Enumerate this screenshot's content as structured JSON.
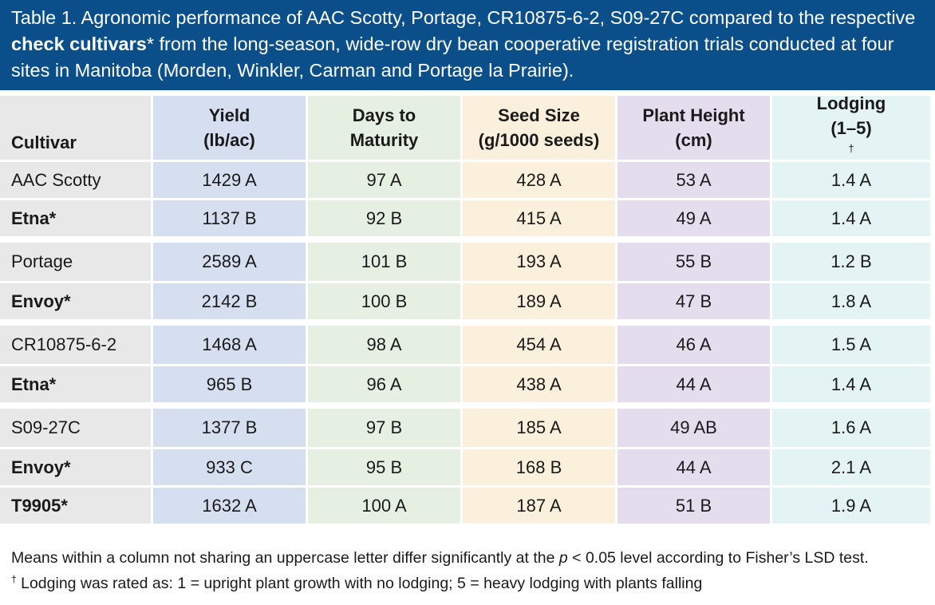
{
  "title": {
    "part1": "Table 1. Agronomic performance of AAC Scotty, Portage, CR10875-6-2, S09-27C compared to the respective ",
    "bold": "check cultivars",
    "part2": "* from the long-season, wide-row dry bean cooperative registration trials conducted at four sites in Manitoba (Morden, Winkler, Carman and Portage la Prairie)."
  },
  "headers": {
    "cultivar": "Cultivar",
    "yield_1": "Yield",
    "yield_2": "(lb/ac)",
    "maturity_1": "Days to",
    "maturity_2": "Maturity",
    "seed_1": "Seed Size",
    "seed_2": "(g/1000 seeds)",
    "height_1": "Plant Height",
    "height_2": "(cm)",
    "lodging_1": "Lodging",
    "lodging_2": "(1–5)",
    "lodging_dagger": "†"
  },
  "groups": [
    {
      "rows": [
        {
          "cultivar": "AAC Scotty",
          "check": false,
          "yield": "1429 A",
          "maturity": "97 A",
          "seed": "428 A",
          "height": "53 A",
          "lodging": "1.4 A"
        },
        {
          "cultivar": "Etna*",
          "check": true,
          "yield": "1137 B",
          "maturity": "92 B",
          "seed": "415 A",
          "height": "49 A",
          "lodging": "1.4 A"
        }
      ]
    },
    {
      "rows": [
        {
          "cultivar": "Portage",
          "check": false,
          "yield": "2589 A",
          "maturity": "101 B",
          "seed": "193 A",
          "height": "55 B",
          "lodging": "1.2 B"
        },
        {
          "cultivar": "Envoy*",
          "check": true,
          "yield": "2142 B",
          "maturity": "100 B",
          "seed": "189 A",
          "height": "47 B",
          "lodging": "1.8 A"
        }
      ]
    },
    {
      "rows": [
        {
          "cultivar": "CR10875-6-2",
          "check": false,
          "yield": "1468 A",
          "maturity": "98 A",
          "seed": "454 A",
          "height": "46 A",
          "lodging": "1.5 A"
        },
        {
          "cultivar": "Etna*",
          "check": true,
          "yield": "965 B",
          "maturity": "96 A",
          "seed": "438 A",
          "height": "44 A",
          "lodging": "1.4 A"
        }
      ]
    },
    {
      "rows": [
        {
          "cultivar": "S09-27C",
          "check": false,
          "yield": "1377 B",
          "maturity": "97 B",
          "seed": "185 A",
          "height": "49 AB",
          "lodging": "1.6 A"
        },
        {
          "cultivar": "Envoy*",
          "check": true,
          "yield": "933 C",
          "maturity": "95 B",
          "seed": "168 B",
          "height": "44 A",
          "lodging": "2.1 A"
        },
        {
          "cultivar": "T9905*",
          "check": true,
          "yield": "1632 A",
          "maturity": "100 A",
          "seed": "187 A",
          "height": "51 B",
          "lodging": "1.9 A"
        }
      ]
    }
  ],
  "footnotes": {
    "line1_a": "Means within a column not sharing an uppercase letter differ significantly at the ",
    "line1_p": "p",
    "line1_b": " < 0.05 level according to Fisher’s LSD test.",
    "line2_dagger": "†",
    "line2": " Lodging was rated as: 1 = upright plant growth with no lodging; 5 = heavy lodging with plants falling"
  },
  "colors": {
    "title_bg": "#0b4f8a",
    "cultivar_col": "#e8e8e8",
    "yield_col": "#d6dff0",
    "maturity_col": "#e6f0e2",
    "seed_col": "#fbf0dc",
    "height_col": "#e3dded",
    "lodging_col": "#e4f3f3"
  }
}
